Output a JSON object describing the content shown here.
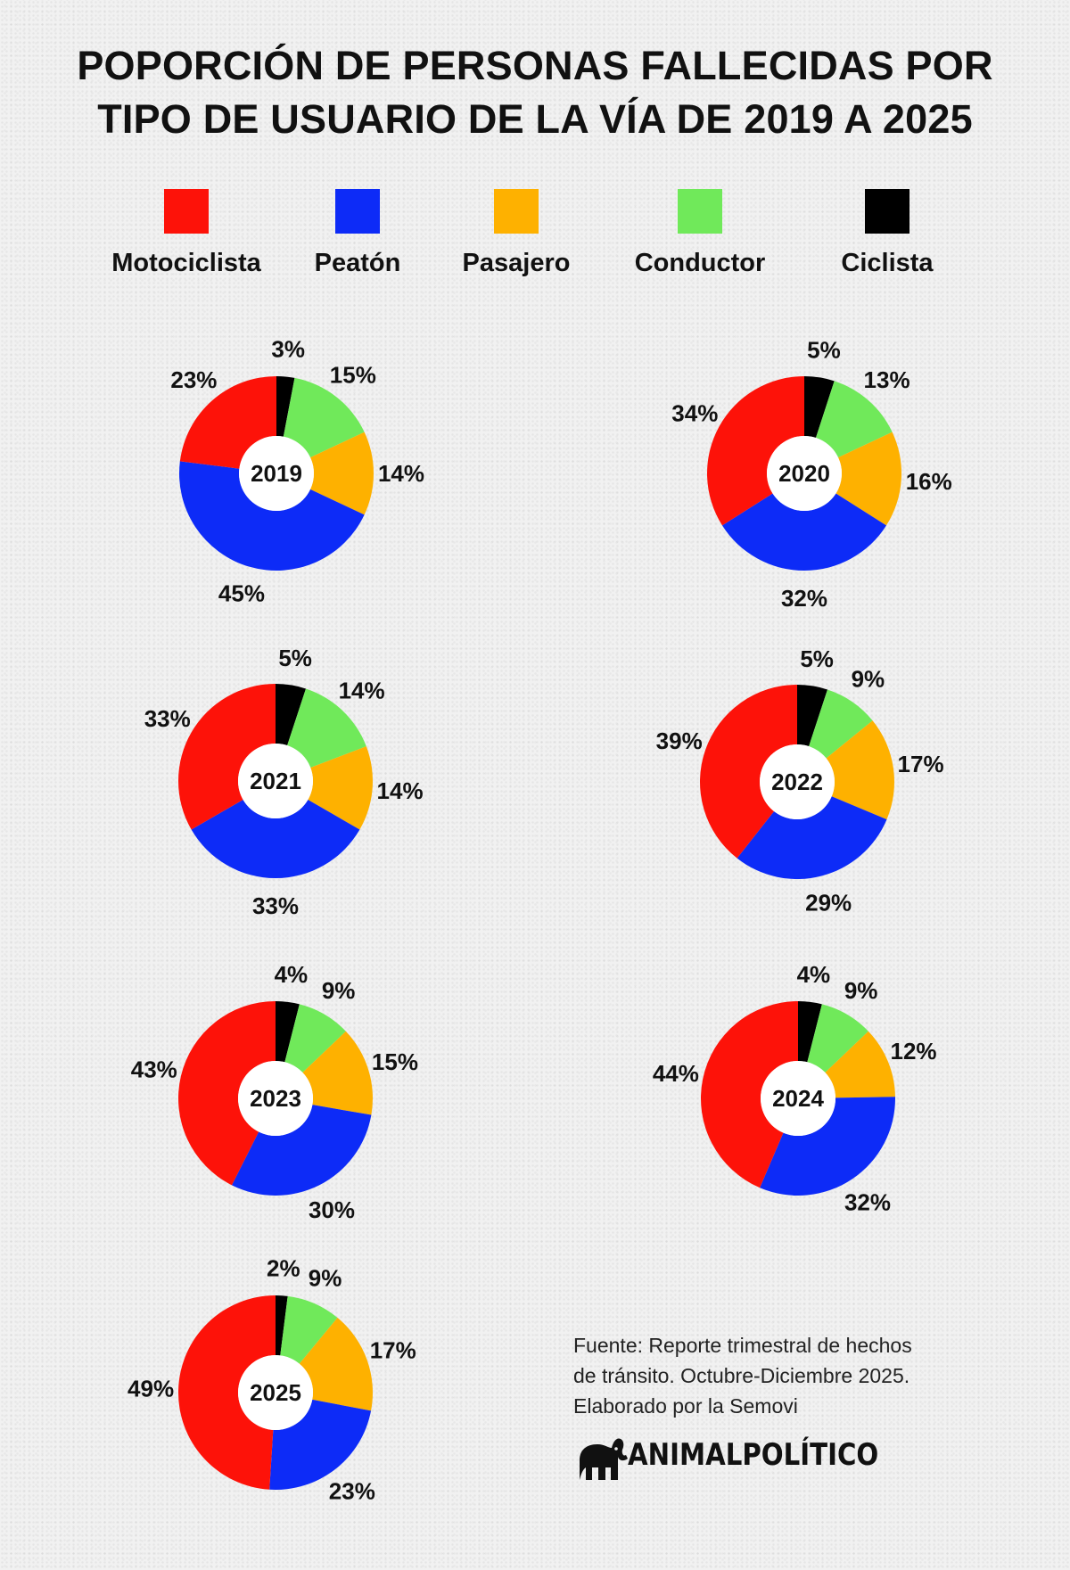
{
  "title_lines": [
    "POPORCIÓN DE PERSONAS FALLECIDAS POR",
    "TIPO DE USUARIO DE LA VÍA DE 2019 A 2025"
  ],
  "legend": [
    {
      "label": "Motociclista",
      "color": "#fd1209"
    },
    {
      "label": "Peatón",
      "color": "#0d2bf7"
    },
    {
      "label": "Pasajero",
      "color": "#feb100"
    },
    {
      "label": "Conductor",
      "color": "#70e95a"
    },
    {
      "label": "Ciclista",
      "color": "#000000"
    }
  ],
  "chart_data": {
    "type": "pie",
    "title": "POPORCIÓN DE PERSONAS FALLECIDAS POR TIPO DE USUARIO DE LA VÍA DE 2019 A 2025",
    "categories": [
      "Ciclista",
      "Conductor",
      "Pasajero",
      "Peatón",
      "Motociclista"
    ],
    "colors": [
      "#000000",
      "#70e95a",
      "#feb100",
      "#0d2bf7",
      "#fd1209"
    ],
    "charts": [
      {
        "year": "2019",
        "values": [
          3,
          15,
          14,
          45,
          23
        ],
        "labels": [
          "3%",
          "15%",
          "14%",
          "45%",
          "23%"
        ]
      },
      {
        "year": "2020",
        "values": [
          5,
          13,
          16,
          32,
          34
        ],
        "labels": [
          "5%",
          "13%",
          "16%",
          "32%",
          "34%"
        ]
      },
      {
        "year": "2021",
        "values": [
          5,
          14,
          14,
          33,
          33
        ],
        "labels": [
          "5%",
          "14%",
          "14%",
          "33%",
          "33%"
        ]
      },
      {
        "year": "2022",
        "values": [
          5,
          9,
          17,
          29,
          39
        ],
        "labels": [
          "5%",
          "9%",
          "17%",
          "29%",
          "39%"
        ]
      },
      {
        "year": "2023",
        "values": [
          4,
          9,
          15,
          30,
          43
        ],
        "labels": [
          "4%",
          "9%",
          "15%",
          "30%",
          "43%"
        ]
      },
      {
        "year": "2024",
        "values": [
          4,
          9,
          12,
          32,
          44
        ],
        "labels": [
          "4%",
          "9%",
          "12%",
          "32%",
          "44%"
        ]
      },
      {
        "year": "2025",
        "values": [
          2,
          9,
          17,
          23,
          49
        ],
        "labels": [
          "2%",
          "9%",
          "17%",
          "23%",
          "49%"
        ]
      }
    ]
  },
  "source": {
    "lines": [
      "Fuente: Reporte trimestral de hechos",
      "de tránsito. Octubre-Diciembre 2025.",
      "Elaborado por la Semovi"
    ]
  },
  "logo": {
    "text": "ANIMALPOLÍTICO"
  }
}
